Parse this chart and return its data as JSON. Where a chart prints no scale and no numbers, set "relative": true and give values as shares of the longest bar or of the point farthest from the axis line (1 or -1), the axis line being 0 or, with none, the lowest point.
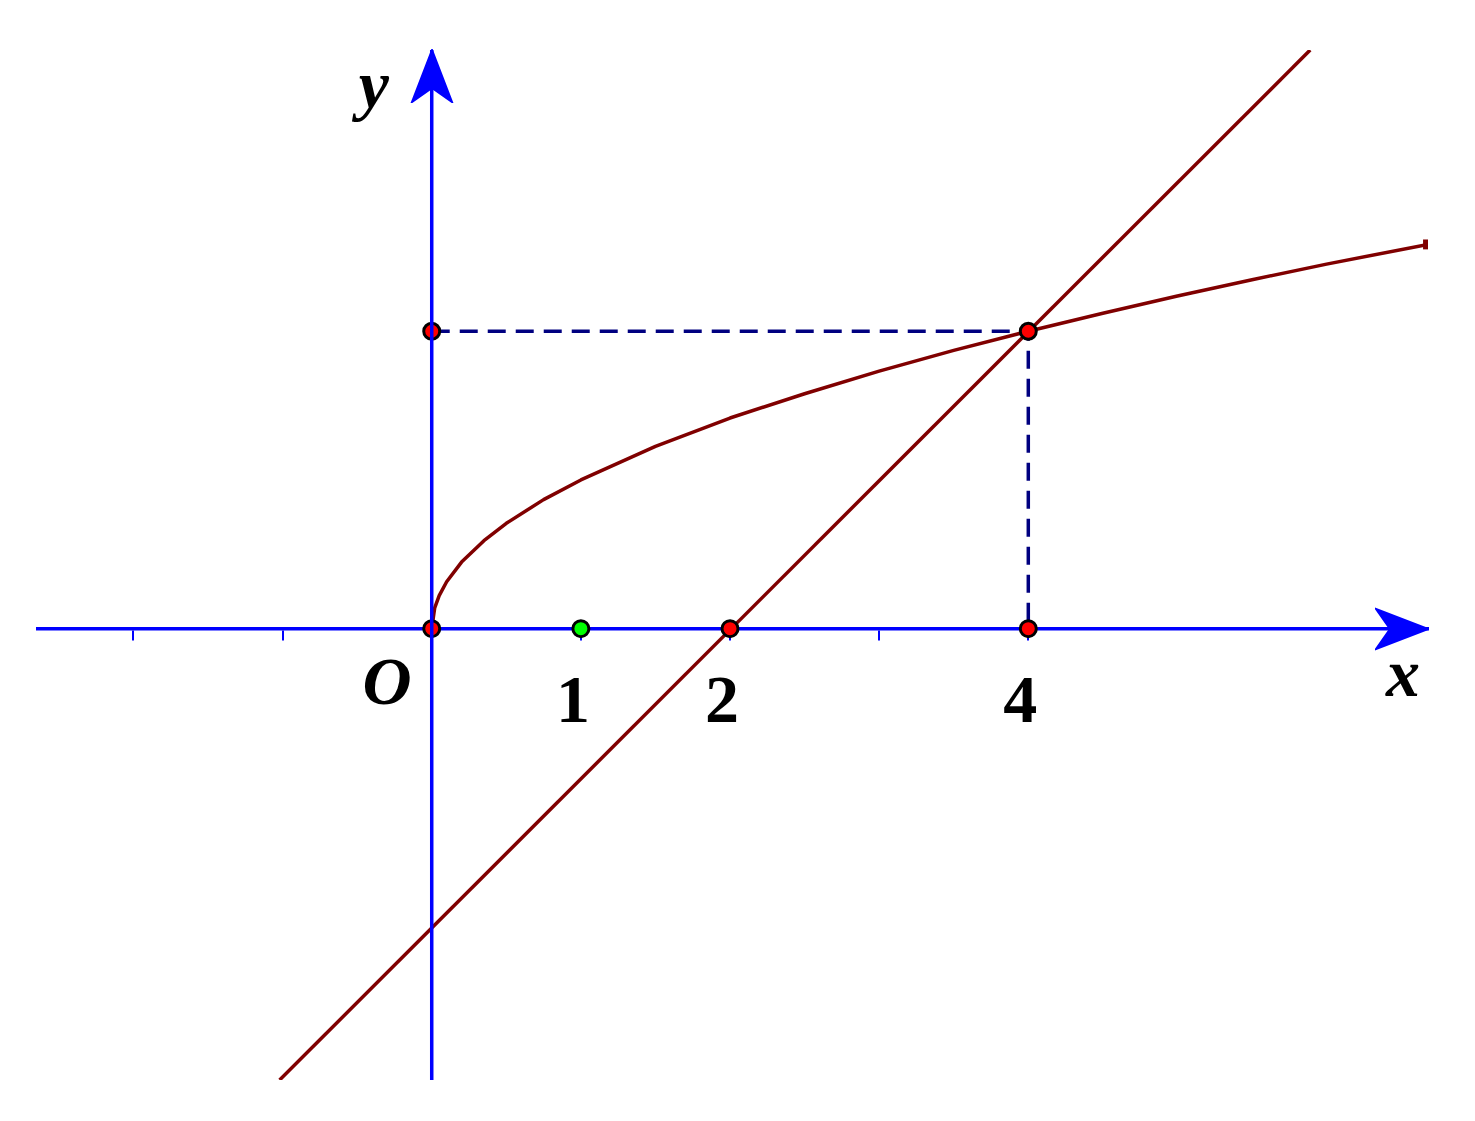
{
  "chart_data": {
    "type": "line",
    "xlabel": "x",
    "ylabel": "y",
    "relative": true,
    "xlim": [
      -2.64,
      6.68
    ],
    "xticks": [
      {
        "value": -2,
        "label": null
      },
      {
        "value": -1,
        "label": null
      },
      {
        "value": 0,
        "label": "O"
      },
      1,
      2,
      {
        "value": 3,
        "label": null
      },
      4
    ],
    "grid": false,
    "legend": false,
    "ref_lines": [
      {
        "axis": "x",
        "value": 0,
        "color": "#0000ff",
        "line_style": "solid"
      }
    ],
    "series": [
      {
        "color": "#800000",
        "marker": "none",
        "line_style": "solid",
        "x": [
          0,
          0.02,
          0.05,
          0.1,
          0.2,
          0.35,
          0.5,
          0.75,
          1,
          1.5,
          2,
          2.5,
          3,
          3.5,
          4,
          4.5,
          5,
          5.5,
          6,
          6.68
        ],
        "values": [
          0,
          0.036,
          0.057,
          0.081,
          0.115,
          0.152,
          0.182,
          0.223,
          0.257,
          0.315,
          0.364,
          0.406,
          0.445,
          0.481,
          0.514,
          0.545,
          0.575,
          0.603,
          0.63,
          0.664
        ]
      },
      {
        "color": "#800000",
        "marker": "none",
        "line_style": "solid",
        "x": [
          -1.02,
          5.89
        ],
        "values": [
          -0.78,
          1
        ]
      },
      {
        "color": "#000080",
        "marker": "none",
        "line_style": "dashed",
        "x": [
          0,
          4,
          4
        ],
        "values": [
          0.514,
          0.514,
          0
        ]
      },
      {
        "type": "scatter",
        "color": "#800000",
        "marker": "square",
        "x": [
          6.68
        ],
        "values": [
          0.664
        ]
      },
      {
        "type": "scatter",
        "color": "#ff0000",
        "marker": "circle",
        "x": [
          0,
          2,
          4,
          4,
          0
        ],
        "values": [
          0,
          0,
          0,
          0.514,
          0.514
        ]
      },
      {
        "type": "scatter",
        "color": "#00ff00",
        "marker": "circle",
        "x": [
          1
        ],
        "values": [
          0
        ]
      }
    ]
  }
}
